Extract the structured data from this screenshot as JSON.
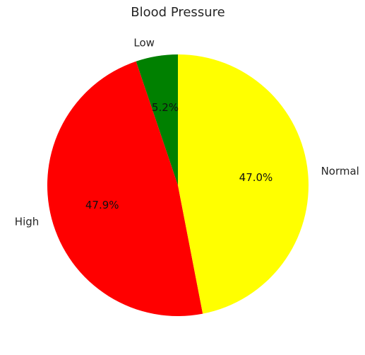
{
  "chart_data": {
    "type": "pie",
    "title": "Blood Pressure",
    "start_angle_deg": 90,
    "direction": "counterclockwise",
    "slices": [
      {
        "label": "Low",
        "value": 5.2,
        "pct_label": "5.2%",
        "color": "#008000"
      },
      {
        "label": "High",
        "value": 47.9,
        "pct_label": "47.9%",
        "color": "#ff0000"
      },
      {
        "label": "Normal",
        "value": 47.0,
        "pct_label": "47.0%",
        "color": "#ffff00"
      }
    ]
  }
}
